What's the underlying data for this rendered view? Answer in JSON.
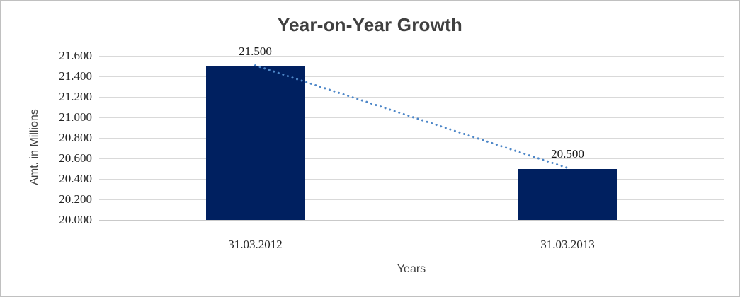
{
  "chart_data": {
    "type": "bar",
    "title": "Year-on-Year Growth",
    "xlabel": "Years",
    "ylabel": "Amt. in Millions",
    "categories": [
      "31.03.2012",
      "31.03.2013"
    ],
    "values": [
      21.5,
      20.5
    ],
    "data_labels": [
      "21.500",
      "20.500"
    ],
    "y_ticks": [
      "21.600",
      "21.400",
      "21.200",
      "21.000",
      "20.800",
      "20.600",
      "20.400",
      "20.200",
      "20.000"
    ],
    "ylim": [
      20.0,
      21.6
    ],
    "tick_step": 0.2,
    "grid": true,
    "legend": "none",
    "trendline": {
      "type": "linear",
      "style": "dotted",
      "color": "#4e87c8"
    },
    "colors": {
      "bar": "#002060",
      "gridline": "#d9d9d9",
      "axis_line": "#c9c9c9",
      "border": "#c0c0c0",
      "title_text": "#404040",
      "tick_text": "#262626"
    }
  }
}
